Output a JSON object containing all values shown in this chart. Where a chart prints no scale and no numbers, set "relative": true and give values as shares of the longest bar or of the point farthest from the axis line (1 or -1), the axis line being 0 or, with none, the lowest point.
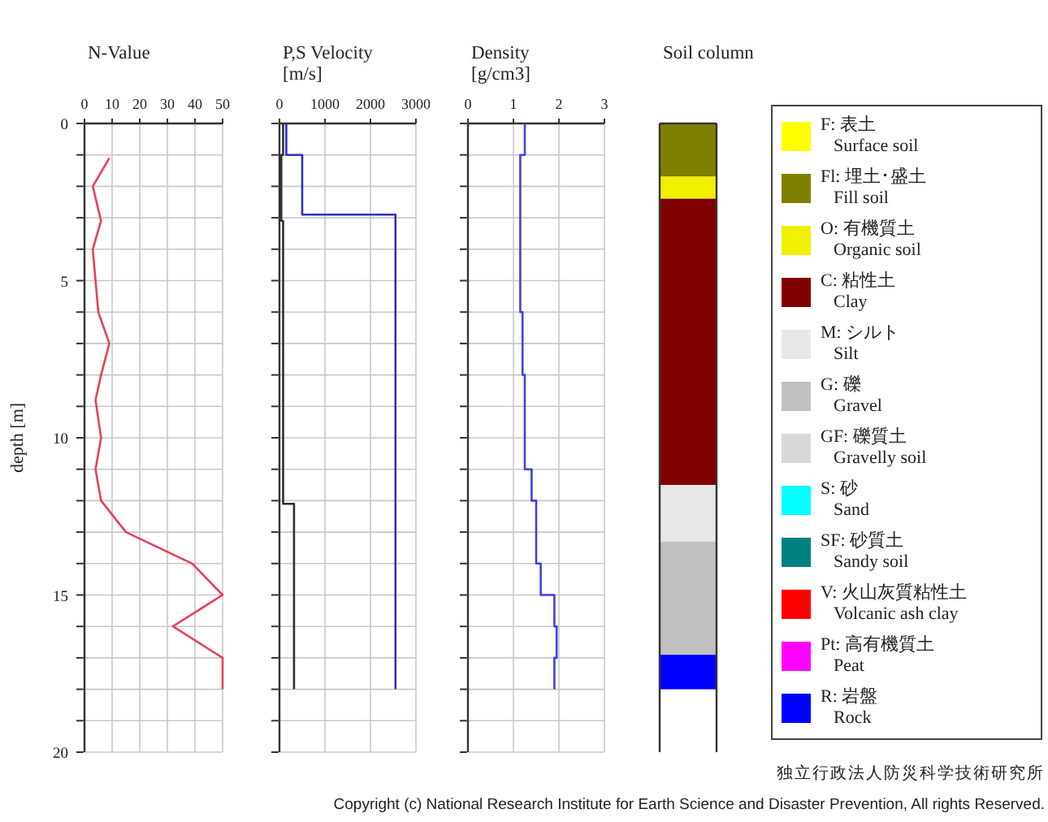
{
  "chart_data": [
    {
      "type": "line",
      "title": "N-Value",
      "ylabel": "depth [m]",
      "xlim": [
        0,
        50
      ],
      "xticks": [
        0,
        10,
        20,
        30,
        40,
        50
      ],
      "ylim": [
        20,
        0
      ],
      "grid": true,
      "yticks": [
        0,
        {
          "value": 1,
          "label": null
        },
        {
          "value": 2,
          "label": null
        },
        {
          "value": 3,
          "label": null
        },
        {
          "value": 4,
          "label": null
        },
        5,
        {
          "value": 6,
          "label": null
        },
        {
          "value": 7,
          "label": null
        },
        {
          "value": 8,
          "label": null
        },
        {
          "value": 9,
          "label": null
        },
        10,
        {
          "value": 11,
          "label": null
        },
        {
          "value": 12,
          "label": null
        },
        {
          "value": 13,
          "label": null
        },
        {
          "value": 14,
          "label": null
        },
        15,
        {
          "value": 16,
          "label": null
        },
        {
          "value": 17,
          "label": null
        },
        {
          "value": 18,
          "label": null
        },
        {
          "value": 19,
          "label": null
        },
        20
      ],
      "series": [
        {
          "color": "#e8405a",
          "x": [
            9,
            3,
            6,
            3,
            4,
            5,
            9,
            6,
            4,
            6,
            4,
            6,
            15,
            39,
            50,
            32,
            50,
            50
          ],
          "values": [
            1.1,
            2,
            3.1,
            4,
            5,
            6,
            7,
            8,
            8.8,
            10,
            11,
            12,
            13,
            14,
            15,
            16,
            17,
            18
          ]
        }
      ]
    },
    {
      "type": "line",
      "title": "P,S Velocity",
      "subtitle": "[m/s]",
      "xlim": [
        0,
        3000
      ],
      "xticks": [
        0,
        1000,
        2000,
        3000
      ],
      "ylim": [
        20,
        0
      ],
      "grid": true,
      "tick_labels": "x",
      "yticks": [
        0,
        {
          "value": 1,
          "label": null
        },
        {
          "value": 2,
          "label": null
        },
        {
          "value": 3,
          "label": null
        },
        {
          "value": 4,
          "label": null
        },
        5,
        {
          "value": 6,
          "label": null
        },
        {
          "value": 7,
          "label": null
        },
        {
          "value": 8,
          "label": null
        },
        {
          "value": 9,
          "label": null
        },
        10,
        {
          "value": 11,
          "label": null
        },
        {
          "value": 12,
          "label": null
        },
        {
          "value": 13,
          "label": null
        },
        {
          "value": 14,
          "label": null
        },
        15,
        {
          "value": 16,
          "label": null
        },
        {
          "value": 17,
          "label": null
        },
        {
          "value": 18,
          "label": null
        },
        {
          "value": 19,
          "label": null
        },
        20
      ],
      "series": [
        {
          "color": "#3030c0",
          "x": [
            150,
            150,
            500,
            500,
            2550,
            2550
          ],
          "values": [
            0,
            1,
            1,
            2.9,
            2.9,
            18
          ]
        },
        {
          "color": "#303030",
          "x": [
            80,
            80,
            40,
            40,
            80,
            80,
            320,
            320
          ],
          "values": [
            0,
            1,
            1,
            3.1,
            3.1,
            12.1,
            12.1,
            18
          ]
        }
      ]
    },
    {
      "type": "line",
      "title": "Density",
      "subtitle": "[g/cm3]",
      "xlim": [
        0,
        3
      ],
      "xticks": [
        0,
        1,
        2,
        3
      ],
      "ylim": [
        20,
        0
      ],
      "grid": true,
      "tick_labels": "x",
      "yticks": [
        0,
        {
          "value": 1,
          "label": null
        },
        {
          "value": 2,
          "label": null
        },
        {
          "value": 3,
          "label": null
        },
        {
          "value": 4,
          "label": null
        },
        5,
        {
          "value": 6,
          "label": null
        },
        {
          "value": 7,
          "label": null
        },
        {
          "value": 8,
          "label": null
        },
        {
          "value": 9,
          "label": null
        },
        10,
        {
          "value": 11,
          "label": null
        },
        {
          "value": 12,
          "label": null
        },
        {
          "value": 13,
          "label": null
        },
        {
          "value": 14,
          "label": null
        },
        15,
        {
          "value": 16,
          "label": null
        },
        {
          "value": 17,
          "label": null
        },
        {
          "value": 18,
          "label": null
        },
        {
          "value": 19,
          "label": null
        },
        20
      ],
      "series": [
        {
          "color": "#4040e0",
          "x": [
            1.25,
            1.25,
            1.15,
            1.15,
            1.2,
            1.2,
            1.25,
            1.25,
            1.4,
            1.4,
            1.5,
            1.5,
            1.6,
            1.6,
            1.9,
            1.9,
            1.95,
            1.95,
            1.9,
            1.9
          ],
          "values": [
            0,
            1,
            1,
            6,
            6,
            8,
            8,
            11,
            11,
            12,
            12,
            14,
            14,
            15,
            15,
            16,
            16,
            17,
            17,
            18
          ]
        }
      ]
    },
    {
      "type": "bar",
      "title": "Soil column",
      "categories": [
        null
      ],
      "relative": true,
      "stacked": true,
      "legend": "right",
      "series": [
        {
          "name": "F: 表土\nSurface soil",
          "color": "#ffff00",
          "values": [
            null
          ]
        },
        {
          "name": "Fl: 埋土･盛土\nFill soil",
          "color": "#808000",
          "values": [
            -0.094
          ]
        },
        {
          "name": "O: 有機質土\nOrganic soil",
          "color": "#f0f000",
          "values": [
            -0.039
          ]
        },
        {
          "name": "C: 粘性土\nClay",
          "color": "#800000",
          "values": [
            -0.506
          ]
        },
        {
          "name": "M: シルト\nSilt",
          "color": "#e8e8e8",
          "values": [
            -0.1
          ]
        },
        {
          "name": "G: 礫\nGravel",
          "color": "#c0c0c0",
          "values": [
            -0.2
          ]
        },
        {
          "name": "GF: 礫質土\nGravelly soil",
          "color": "#d8d8d8",
          "values": [
            null
          ]
        },
        {
          "name": "S: 砂\nSand",
          "color": "#00ffff",
          "values": [
            null
          ]
        },
        {
          "name": "SF: 砂質土\nSandy soil",
          "color": "#008080",
          "values": [
            null
          ]
        },
        {
          "name": "V: 火山灰質粘性土\nVolcanic ash clay",
          "color": "#ff0000",
          "values": [
            null
          ]
        },
        {
          "name": "Pt: 高有機質土\nPeat",
          "color": "#ff00ff",
          "values": [
            null
          ]
        },
        {
          "name": "R: 岩盤\nRock",
          "color": "#0000ff",
          "values": [
            -0.061
          ]
        }
      ],
      "annotations": [
        "独立行政法人防災科学技術研究所",
        "Copyright (c) National Research Institute for Earth Science and Disaster Prevention, All rights Reserved."
      ]
    }
  ]
}
